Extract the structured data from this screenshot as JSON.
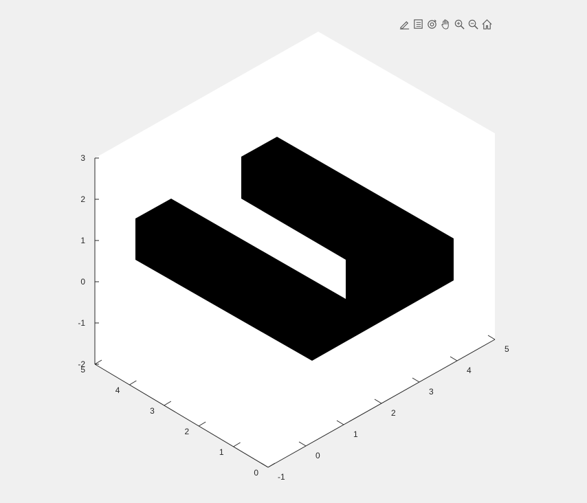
{
  "toolbar": {
    "buttons": [
      {
        "name": "edit-plot-icon"
      },
      {
        "name": "insert-legend-icon"
      },
      {
        "name": "rotate-3d-icon"
      },
      {
        "name": "pan-icon"
      },
      {
        "name": "zoom-in-icon"
      },
      {
        "name": "zoom-out-icon"
      },
      {
        "name": "home-icon"
      }
    ]
  },
  "colors": {
    "figure_background": "#f0f0f0",
    "axes_background": "#ffffff",
    "shape_fill": "#000000",
    "axis_line": "#262626"
  },
  "chart_data": {
    "type": "surface",
    "view": "isometric 3D",
    "shape": "U-shaped extruded solid",
    "grid": false,
    "title": "",
    "xlabel": "",
    "ylabel": "",
    "zlabel": "",
    "xlim": [
      -1,
      5
    ],
    "ylim": [
      0,
      5
    ],
    "zlim": [
      -2,
      3
    ],
    "x_ticks": [
      "-1",
      "0",
      "1",
      "2",
      "3",
      "4",
      "5"
    ],
    "y_ticks": [
      "0",
      "1",
      "2",
      "3",
      "4",
      "5"
    ],
    "z_ticks": [
      "-2",
      "-1",
      "0",
      "1",
      "2",
      "3"
    ]
  }
}
